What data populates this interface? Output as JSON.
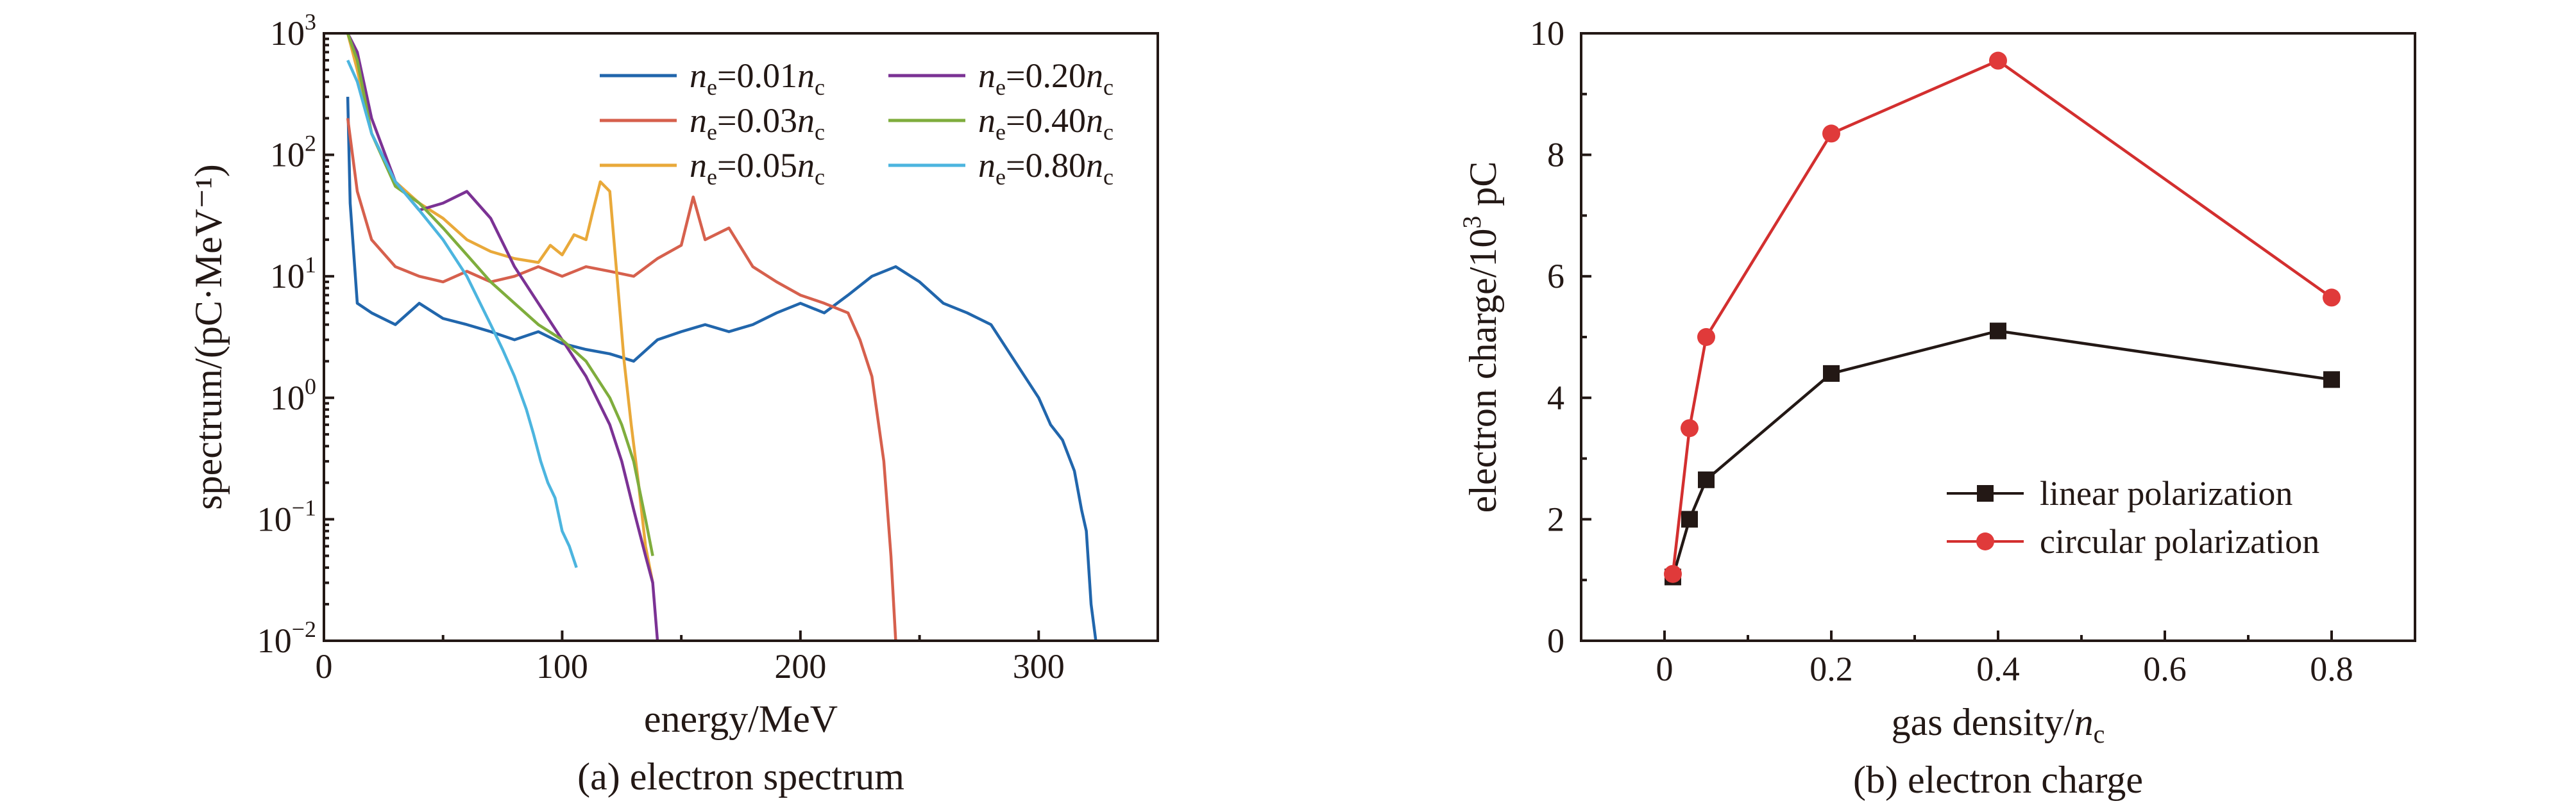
{
  "chart_data": [
    {
      "type": "line",
      "caption": "(a) electron spectrum",
      "xlabel": "energy/MeV",
      "ylabel": "spectrum/(pC·MeV⁻¹)",
      "xlim": [
        0,
        350
      ],
      "ylim": [
        0.01,
        1000
      ],
      "yscale": "log",
      "xticks": [
        0,
        100,
        200,
        300
      ],
      "yticks": [
        {
          "value": 0.01,
          "base": "10",
          "exp": "−2"
        },
        {
          "value": 0.1,
          "base": "10",
          "exp": "−1"
        },
        {
          "value": 1,
          "base": "10",
          "exp": "0"
        },
        {
          "value": 10,
          "base": "10",
          "exp": "1"
        },
        {
          "value": 100,
          "base": "10",
          "exp": "2"
        },
        {
          "value": 1000,
          "base": "10",
          "exp": "3"
        }
      ],
      "legend_position": "top-right",
      "series": [
        {
          "legend": {
            "pre": "n",
            "sub": "e",
            "mid": "=0.01n",
            "sub2": "c"
          },
          "color": "#2166ac",
          "x": [
            10,
            11,
            14,
            20,
            30,
            40,
            50,
            60,
            70,
            80,
            90,
            100,
            110,
            120,
            130,
            140,
            150,
            160,
            170,
            180,
            190,
            200,
            210,
            220,
            230,
            240,
            250,
            260,
            270,
            280,
            290,
            300,
            305,
            310,
            315,
            318,
            320,
            322,
            324
          ],
          "y": [
            300,
            40,
            6,
            5,
            4,
            6,
            4.5,
            4,
            3.5,
            3,
            3.5,
            2.8,
            2.5,
            2.3,
            2,
            3,
            3.5,
            4,
            3.5,
            4,
            5,
            6,
            5,
            7,
            10,
            12,
            9,
            6,
            5,
            4,
            2,
            1,
            0.6,
            0.45,
            0.25,
            0.12,
            0.08,
            0.02,
            0.01
          ]
        },
        {
          "legend": {
            "pre": "n",
            "sub": "e",
            "mid": "=0.03n",
            "sub2": "c"
          },
          "color": "#d6604d",
          "x": [
            10,
            14,
            20,
            30,
            40,
            50,
            60,
            70,
            80,
            90,
            100,
            110,
            120,
            130,
            140,
            150,
            155,
            160,
            170,
            180,
            190,
            200,
            210,
            220,
            225,
            230,
            235,
            238,
            240
          ],
          "y": [
            200,
            50,
            20,
            12,
            10,
            9,
            11,
            9,
            10,
            12,
            10,
            12,
            11,
            10,
            14,
            18,
            45,
            20,
            25,
            12,
            9,
            7,
            6,
            5,
            3,
            1.5,
            0.3,
            0.05,
            0.01
          ]
        },
        {
          "legend": {
            "pre": "n",
            "sub": "e",
            "mid": "=0.05n",
            "sub2": "c"
          },
          "color": "#e9a93a",
          "x": [
            10,
            14,
            20,
            30,
            40,
            50,
            60,
            70,
            80,
            90,
            95,
            100,
            105,
            110,
            113,
            116,
            120,
            123,
            126,
            129,
            132,
            135,
            138
          ],
          "y": [
            1000,
            500,
            150,
            60,
            40,
            30,
            20,
            16,
            14,
            13,
            18,
            15,
            22,
            20,
            35,
            60,
            50,
            10,
            2,
            0.6,
            0.2,
            0.06,
            0.03
          ]
        },
        {
          "legend": {
            "pre": "n",
            "sub": "e",
            "mid": "=0.20n",
            "sub2": "c"
          },
          "color": "#7b3294",
          "x": [
            10,
            14,
            20,
            30,
            40,
            50,
            60,
            70,
            80,
            90,
            100,
            110,
            120,
            125,
            130,
            135,
            138,
            140
          ],
          "y": [
            1000,
            700,
            200,
            60,
            35,
            40,
            50,
            30,
            12,
            6,
            3,
            1.5,
            0.6,
            0.3,
            0.12,
            0.05,
            0.03,
            0.01
          ]
        },
        {
          "legend": {
            "pre": "n",
            "sub": "e",
            "mid": "=0.40n",
            "sub2": "c"
          },
          "color": "#7fad3d",
          "x": [
            10,
            14,
            20,
            30,
            40,
            50,
            60,
            70,
            80,
            90,
            100,
            110,
            120,
            125,
            130,
            135,
            138
          ],
          "y": [
            1000,
            600,
            150,
            55,
            40,
            25,
            15,
            9,
            6,
            4,
            3,
            2,
            1,
            0.6,
            0.3,
            0.1,
            0.05
          ]
        },
        {
          "legend": {
            "pre": "n",
            "sub": "e",
            "mid": "=0.80n",
            "sub2": "c"
          },
          "color": "#4cb5df",
          "x": [
            10,
            14,
            20,
            30,
            40,
            50,
            60,
            70,
            75,
            80,
            85,
            88,
            91,
            94,
            97,
            100,
            103,
            106
          ],
          "y": [
            600,
            400,
            150,
            60,
            35,
            20,
            10,
            4,
            2.5,
            1.5,
            0.8,
            0.5,
            0.3,
            0.2,
            0.15,
            0.08,
            0.06,
            0.04
          ]
        }
      ]
    },
    {
      "type": "line",
      "caption": "(b) electron charge",
      "xlabel": {
        "pre": "gas density/",
        "var": "n",
        "sub": "c"
      },
      "ylabel": {
        "pre": "electron charge/10",
        "sup": "3",
        "post": " pC"
      },
      "xlim": [
        -0.1,
        0.9
      ],
      "ylim": [
        0,
        10
      ],
      "xticks": [
        0,
        0.2,
        0.4,
        0.6,
        0.8
      ],
      "xtick_labels": [
        "0",
        "0.2",
        "0.4",
        "0.6",
        "0.8"
      ],
      "yticks": [
        0,
        2,
        4,
        6,
        8,
        10
      ],
      "ytick_labels": [
        "0",
        "2",
        "4",
        "6",
        "8",
        "10"
      ],
      "legend_position": "bottom-right",
      "series": [
        {
          "name": "linear polarization",
          "color": "#231815",
          "marker": "square",
          "x": [
            0.01,
            0.03,
            0.05,
            0.2,
            0.4,
            0.8
          ],
          "y": [
            1.05,
            2.0,
            2.65,
            4.4,
            5.1,
            4.3
          ]
        },
        {
          "name": "circular polarization",
          "color": "#e03a3a",
          "line_color": "#d32f2f",
          "marker": "circle",
          "x": [
            0.01,
            0.03,
            0.05,
            0.2,
            0.4,
            0.8
          ],
          "y": [
            1.1,
            3.5,
            5.0,
            8.35,
            9.55,
            5.65
          ]
        }
      ]
    }
  ]
}
